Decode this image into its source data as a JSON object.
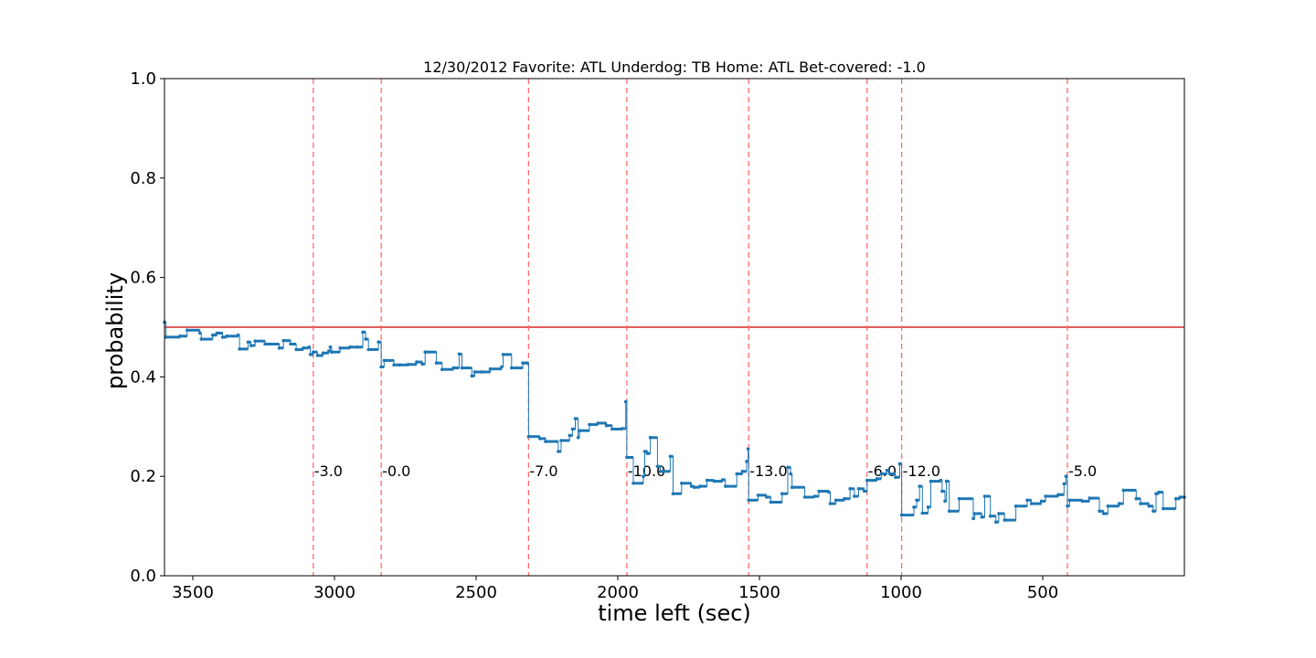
{
  "chart_data": {
    "type": "line",
    "title": "12/30/2012 Favorite: ATL Underdog: TB Home: ATL Bet-covered: -1.0",
    "xlabel": "time left (sec)",
    "ylabel": "probability",
    "xlim": [
      3600,
      0
    ],
    "ylim": [
      0.0,
      1.0
    ],
    "x_inverted": true,
    "xticks": [
      3500,
      3000,
      2500,
      2000,
      1500,
      1000,
      500
    ],
    "xtick_labels": [
      "3500",
      "3000",
      "2500",
      "2000",
      "1500",
      "1000",
      "500"
    ],
    "yticks": [
      0.0,
      0.2,
      0.4,
      0.6,
      0.8,
      1.0
    ],
    "ytick_labels": [
      "0.0",
      "0.2",
      "0.4",
      "0.6",
      "0.8",
      "1.0"
    ],
    "grid": false,
    "series_color": "#1f77b4",
    "reference_line": {
      "y": 0.5,
      "color": "#d62728"
    },
    "vline_color": "#ff6b6b",
    "score_events": [
      {
        "x": 3075,
        "label": "-3.0"
      },
      {
        "x": 2835,
        "label": "-0.0"
      },
      {
        "x": 2315,
        "label": "-7.0"
      },
      {
        "x": 1968,
        "label": "-10.0"
      },
      {
        "x": 1538,
        "label": "-13.0"
      },
      {
        "x": 1120,
        "label": "-6.0"
      },
      {
        "x": 998,
        "label": "-12.0"
      },
      {
        "x": 413,
        "label": "-5.0"
      }
    ],
    "series": [
      {
        "points": [
          [
            3600,
            0.51
          ],
          [
            3595,
            0.48
          ],
          [
            3545,
            0.482
          ],
          [
            3520,
            0.494
          ],
          [
            3475,
            0.488
          ],
          [
            3470,
            0.476
          ],
          [
            3430,
            0.484
          ],
          [
            3415,
            0.488
          ],
          [
            3395,
            0.48
          ],
          [
            3380,
            0.482
          ],
          [
            3340,
            0.484
          ],
          [
            3335,
            0.456
          ],
          [
            3305,
            0.47
          ],
          [
            3295,
            0.463
          ],
          [
            3280,
            0.472
          ],
          [
            3245,
            0.466
          ],
          [
            3195,
            0.458
          ],
          [
            3180,
            0.473
          ],
          [
            3155,
            0.466
          ],
          [
            3135,
            0.455
          ],
          [
            3110,
            0.458
          ],
          [
            3090,
            0.46
          ],
          [
            3085,
            0.445
          ],
          [
            3075,
            0.45
          ],
          [
            3060,
            0.443
          ],
          [
            3040,
            0.448
          ],
          [
            3020,
            0.452
          ],
          [
            3015,
            0.46
          ],
          [
            3010,
            0.45
          ],
          [
            2980,
            0.458
          ],
          [
            2945,
            0.46
          ],
          [
            2920,
            0.46
          ],
          [
            2900,
            0.49
          ],
          [
            2890,
            0.476
          ],
          [
            2880,
            0.455
          ],
          [
            2845,
            0.47
          ],
          [
            2835,
            0.42
          ],
          [
            2825,
            0.433
          ],
          [
            2790,
            0.424
          ],
          [
            2770,
            0.424
          ],
          [
            2740,
            0.425
          ],
          [
            2710,
            0.43
          ],
          [
            2690,
            0.426
          ],
          [
            2680,
            0.45
          ],
          [
            2640,
            0.428
          ],
          [
            2620,
            0.415
          ],
          [
            2580,
            0.418
          ],
          [
            2560,
            0.446
          ],
          [
            2550,
            0.418
          ],
          [
            2515,
            0.402
          ],
          [
            2505,
            0.41
          ],
          [
            2480,
            0.41
          ],
          [
            2450,
            0.416
          ],
          [
            2410,
            0.42
          ],
          [
            2405,
            0.445
          ],
          [
            2375,
            0.418
          ],
          [
            2335,
            0.428
          ],
          [
            2320,
            0.428
          ],
          [
            2315,
            0.28
          ],
          [
            2275,
            0.276
          ],
          [
            2255,
            0.27
          ],
          [
            2210,
            0.25
          ],
          [
            2200,
            0.272
          ],
          [
            2170,
            0.282
          ],
          [
            2160,
            0.295
          ],
          [
            2150,
            0.316
          ],
          [
            2140,
            0.278
          ],
          [
            2135,
            0.292
          ],
          [
            2100,
            0.304
          ],
          [
            2070,
            0.307
          ],
          [
            2040,
            0.302
          ],
          [
            2020,
            0.295
          ],
          [
            1985,
            0.296
          ],
          [
            1972,
            0.35
          ],
          [
            1968,
            0.238
          ],
          [
            1945,
            0.186
          ],
          [
            1910,
            0.2
          ],
          [
            1905,
            0.25
          ],
          [
            1895,
            0.246
          ],
          [
            1885,
            0.278
          ],
          [
            1860,
            0.22
          ],
          [
            1850,
            0.21
          ],
          [
            1815,
            0.24
          ],
          [
            1805,
            0.165
          ],
          [
            1775,
            0.186
          ],
          [
            1740,
            0.18
          ],
          [
            1730,
            0.178
          ],
          [
            1710,
            0.18
          ],
          [
            1685,
            0.192
          ],
          [
            1660,
            0.19
          ],
          [
            1630,
            0.193
          ],
          [
            1620,
            0.18
          ],
          [
            1580,
            0.205
          ],
          [
            1560,
            0.21
          ],
          [
            1545,
            0.23
          ],
          [
            1540,
            0.255
          ],
          [
            1538,
            0.152
          ],
          [
            1505,
            0.162
          ],
          [
            1475,
            0.158
          ],
          [
            1460,
            0.148
          ],
          [
            1420,
            0.165
          ],
          [
            1400,
            0.218
          ],
          [
            1390,
            0.205
          ],
          [
            1385,
            0.178
          ],
          [
            1340,
            0.158
          ],
          [
            1305,
            0.16
          ],
          [
            1290,
            0.17
          ],
          [
            1255,
            0.168
          ],
          [
            1250,
            0.145
          ],
          [
            1230,
            0.152
          ],
          [
            1200,
            0.155
          ],
          [
            1180,
            0.175
          ],
          [
            1165,
            0.16
          ],
          [
            1150,
            0.175
          ],
          [
            1130,
            0.17
          ],
          [
            1120,
            0.192
          ],
          [
            1085,
            0.195
          ],
          [
            1070,
            0.205
          ],
          [
            1050,
            0.212
          ],
          [
            1040,
            0.205
          ],
          [
            1020,
            0.198
          ],
          [
            1005,
            0.225
          ],
          [
            998,
            0.122
          ],
          [
            955,
            0.138
          ],
          [
            945,
            0.152
          ],
          [
            935,
            0.18
          ],
          [
            925,
            0.126
          ],
          [
            905,
            0.138
          ],
          [
            895,
            0.19
          ],
          [
            860,
            0.192
          ],
          [
            855,
            0.17
          ],
          [
            845,
            0.15
          ],
          [
            840,
            0.19
          ],
          [
            830,
            0.13
          ],
          [
            795,
            0.155
          ],
          [
            745,
            0.115
          ],
          [
            740,
            0.125
          ],
          [
            715,
            0.118
          ],
          [
            705,
            0.16
          ],
          [
            685,
            0.12
          ],
          [
            665,
            0.108
          ],
          [
            655,
            0.125
          ],
          [
            635,
            0.112
          ],
          [
            595,
            0.14
          ],
          [
            555,
            0.152
          ],
          [
            540,
            0.145
          ],
          [
            505,
            0.15
          ],
          [
            490,
            0.16
          ],
          [
            445,
            0.163
          ],
          [
            425,
            0.185
          ],
          [
            418,
            0.2
          ],
          [
            413,
            0.14
          ],
          [
            405,
            0.152
          ],
          [
            360,
            0.15
          ],
          [
            335,
            0.156
          ],
          [
            300,
            0.13
          ],
          [
            285,
            0.125
          ],
          [
            270,
            0.14
          ],
          [
            230,
            0.145
          ],
          [
            215,
            0.172
          ],
          [
            170,
            0.155
          ],
          [
            155,
            0.145
          ],
          [
            125,
            0.14
          ],
          [
            110,
            0.13
          ],
          [
            100,
            0.165
          ],
          [
            90,
            0.168
          ],
          [
            75,
            0.135
          ],
          [
            30,
            0.155
          ],
          [
            15,
            0.158
          ],
          [
            0,
            0.158
          ]
        ]
      }
    ]
  }
}
